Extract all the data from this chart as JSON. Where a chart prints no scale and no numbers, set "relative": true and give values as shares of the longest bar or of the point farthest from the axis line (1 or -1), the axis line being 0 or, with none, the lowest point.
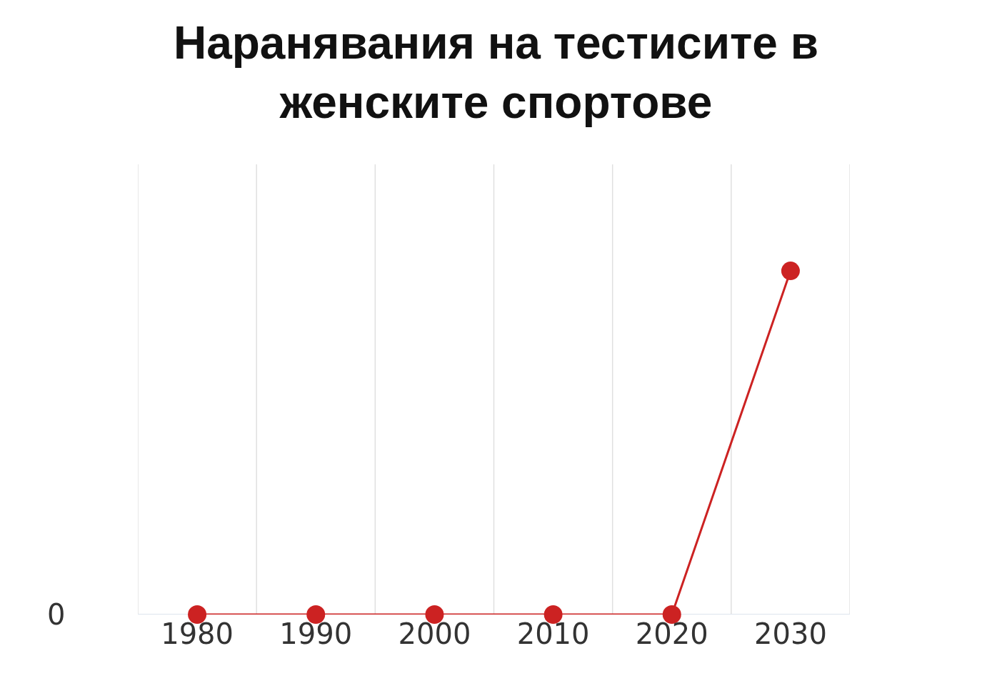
{
  "chart_data": {
    "type": "line",
    "title": "Наранявания на тестисите в\nженските спортове",
    "categories": [
      "1980",
      "1990",
      "2000",
      "2010",
      "2020",
      "2030"
    ],
    "series": [
      {
        "color": "#cc2222",
        "values": [
          0,
          0,
          0,
          0,
          0,
          1
        ]
      }
    ],
    "relative": true,
    "marker": "circle",
    "line_style": "solid",
    "grid": "x",
    "annotations": [
      "0"
    ]
  }
}
